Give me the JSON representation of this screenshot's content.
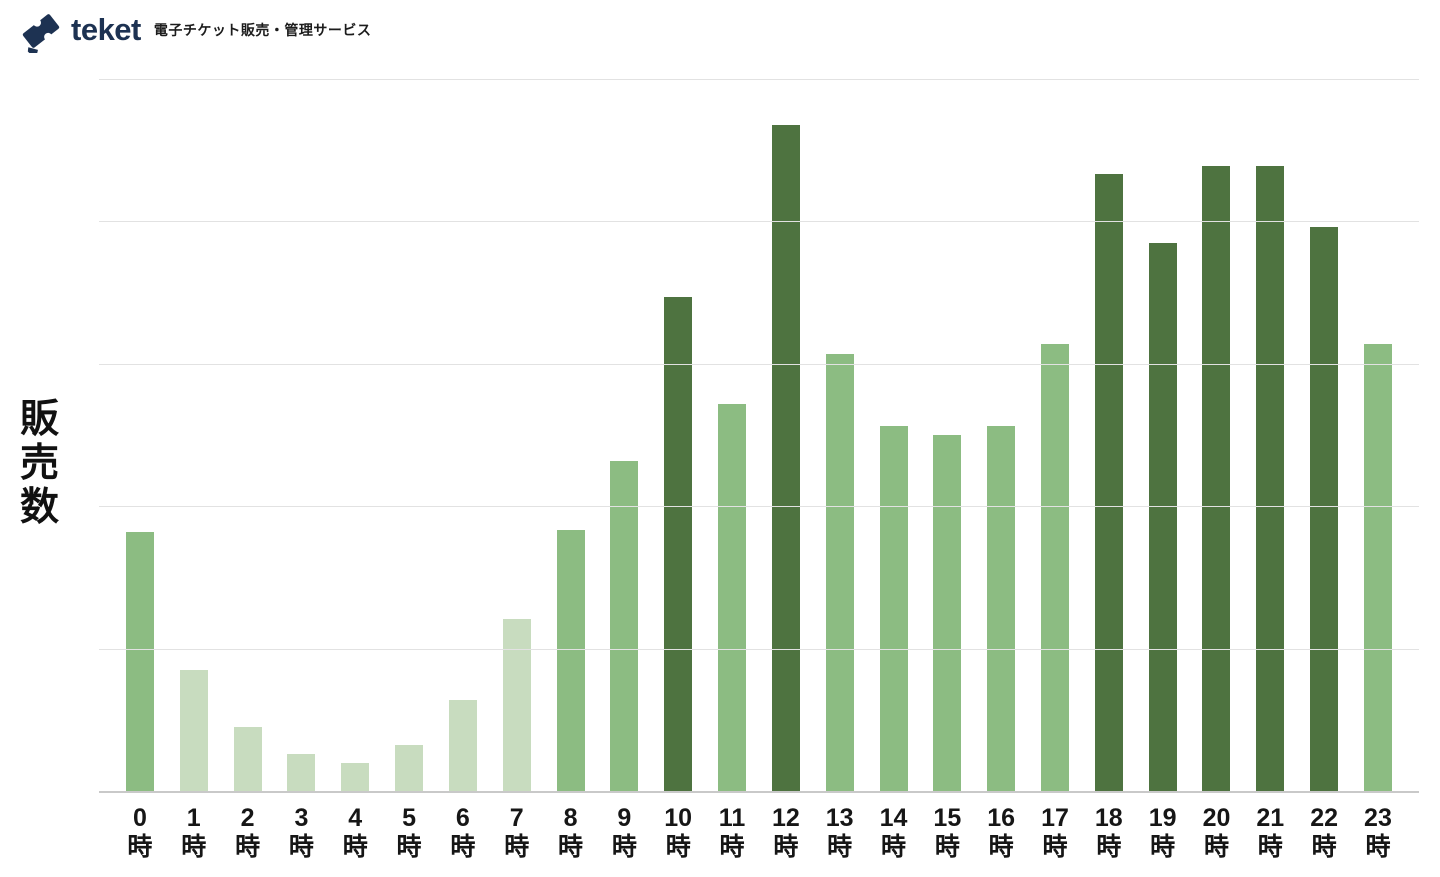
{
  "header": {
    "brand": "teket",
    "tagline": "電子チケット販売・管理サービス",
    "brand_color": "#1d3252"
  },
  "chart_data": {
    "type": "bar",
    "title": "",
    "xlabel": "",
    "ylabel": "販売数",
    "x_unit_suffix": "時",
    "hours": [
      "0",
      "1",
      "2",
      "3",
      "4",
      "5",
      "6",
      "7",
      "8",
      "9",
      "10",
      "11",
      "12",
      "13",
      "14",
      "15",
      "16",
      "17",
      "18",
      "19",
      "20",
      "21",
      "22",
      "23"
    ],
    "categories": [
      "0時",
      "1時",
      "2時",
      "3時",
      "4時",
      "5時",
      "6時",
      "7時",
      "8時",
      "9時",
      "10時",
      "11時",
      "12時",
      "13時",
      "14時",
      "15時",
      "16時",
      "17時",
      "18時",
      "19時",
      "20時",
      "21時",
      "22時",
      "23時"
    ],
    "values": [
      1.82,
      0.85,
      0.45,
      0.26,
      0.2,
      0.32,
      0.64,
      1.21,
      1.83,
      2.32,
      3.47,
      2.72,
      4.68,
      3.07,
      2.56,
      2.5,
      2.56,
      3.14,
      4.33,
      3.85,
      4.39,
      4.39,
      3.96,
      3.14
    ],
    "values_unit": "relative gridline units (y axis shows no numeric tick labels)",
    "ylim": [
      0,
      5
    ],
    "gridline_interval": 1,
    "gridlines_count": 5,
    "grid": true,
    "legend": "none",
    "y_tick_labels": "none",
    "colors": {
      "light": "#c8dcbf",
      "medium": "#8cbc82",
      "dark": "#4e7340"
    },
    "bar_shades": [
      "medium",
      "light",
      "light",
      "light",
      "light",
      "light",
      "light",
      "light",
      "medium",
      "medium",
      "dark",
      "medium",
      "dark",
      "medium",
      "medium",
      "medium",
      "medium",
      "medium",
      "dark",
      "dark",
      "dark",
      "dark",
      "dark",
      "medium"
    ]
  }
}
